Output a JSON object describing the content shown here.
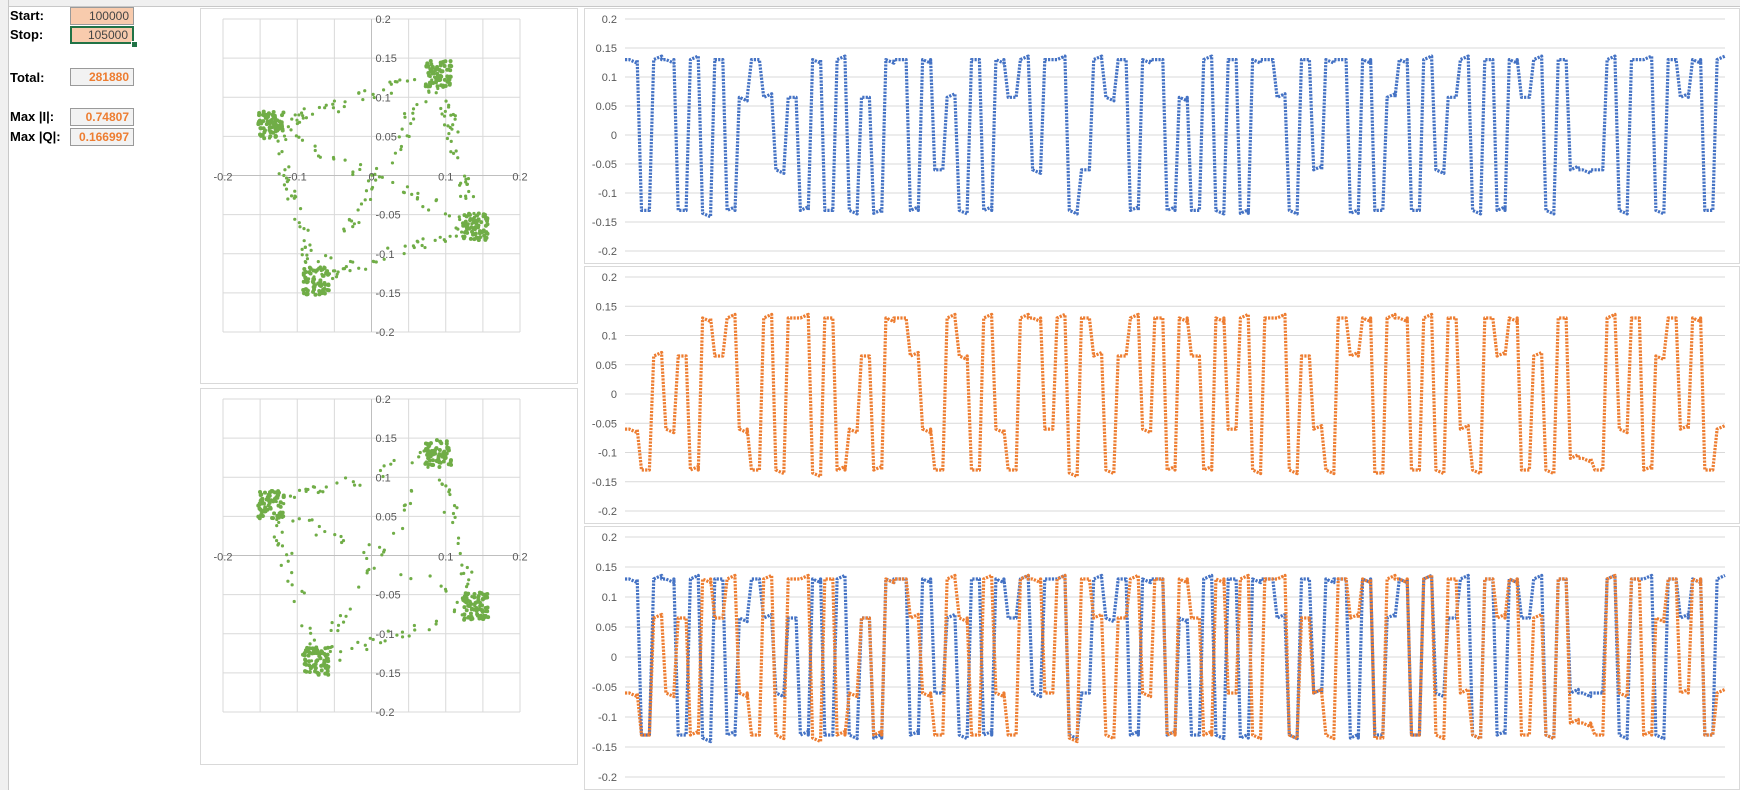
{
  "controls": {
    "start": {
      "label": "Start:",
      "value": "100000"
    },
    "stop": {
      "label": "Stop:",
      "value": "105000"
    },
    "total": {
      "label": "Total:",
      "value": "281880"
    },
    "max_i": {
      "label": "Max |I|:",
      "value": "0.74807"
    },
    "max_q": {
      "label": "Max |Q|:",
      "value": "0.166997"
    }
  },
  "colors": {
    "i_series": "#4472c4",
    "q_series": "#ed7d31",
    "constellation": "#70ad47",
    "grid": "#d9d9d9"
  },
  "chart_data": [
    {
      "type": "scatter",
      "name": "constellation-top",
      "xlim": [
        -0.2,
        0.2
      ],
      "ylim": [
        -0.2,
        0.2
      ],
      "xticks": [
        "-0.2",
        "-0.15",
        "-0.1",
        "-0.05",
        "0",
        "0.05",
        "0.1",
        "0.15",
        "0.2"
      ],
      "yticks": [
        "0.2",
        "0.15",
        "0.1",
        "0.05",
        "0",
        "-0.05",
        "-0.1",
        "-0.15",
        "-0.2"
      ],
      "x_tick_labels": [
        "-0.2",
        "-0.1",
        "0",
        "0.1",
        "0.2"
      ],
      "y_tick_labels": [
        "0.2",
        "0.15",
        "0.1",
        "0.05",
        "-0.05",
        "-0.1",
        "-0.15",
        "-0.2"
      ],
      "clusters": [
        [
          0.09,
          0.13
        ],
        [
          -0.135,
          0.065
        ],
        [
          0.14,
          -0.065
        ],
        [
          -0.075,
          -0.135
        ]
      ],
      "grid": true
    },
    {
      "type": "scatter",
      "name": "constellation-bottom",
      "xlim": [
        -0.2,
        0.2
      ],
      "ylim": [
        -0.2,
        0.2
      ],
      "x_tick_labels": [
        "-0.2",
        "0.1",
        "0.2"
      ],
      "y_tick_labels": [
        "0.2",
        "0.15",
        "0.1",
        "0.05",
        "-0.05",
        "-0.1",
        "-0.15",
        "-0.2"
      ],
      "clusters": [
        [
          0.09,
          0.13
        ],
        [
          -0.135,
          0.065
        ],
        [
          0.14,
          -0.065
        ],
        [
          -0.075,
          -0.135
        ]
      ],
      "grid": true
    },
    {
      "type": "line",
      "name": "i-waveform",
      "ylim": [
        -0.2,
        0.2
      ],
      "yticks": [
        "0.2",
        "0.15",
        "0.1",
        "0.05",
        "0",
        "-0.05",
        "-0.1",
        "-0.15",
        "-0.2"
      ],
      "levels": [
        -0.135,
        -0.06,
        0.065,
        0.13
      ],
      "series": [
        {
          "values": [
            0.13,
            -0.13,
            0.13,
            0.13,
            -0.13,
            0.13,
            -0.135,
            0.13,
            -0.13,
            0.065,
            0.13,
            0.065,
            -0.06,
            0.065,
            -0.13,
            0.13,
            -0.13,
            0.13,
            -0.13,
            0.065,
            -0.135,
            0.13,
            0.13,
            -0.13,
            0.13,
            -0.06,
            0.065,
            -0.13,
            0.13,
            -0.13,
            0.13,
            0.065,
            0.13,
            -0.06,
            0.13,
            0.13,
            -0.13,
            -0.06,
            0.13,
            0.065,
            0.13,
            -0.13,
            0.13,
            0.13,
            -0.13,
            0.065,
            -0.13,
            0.13,
            -0.13,
            0.13,
            -0.135,
            0.13,
            0.13,
            0.065,
            -0.13,
            0.13,
            -0.06,
            0.13,
            0.13,
            -0.135,
            0.13,
            -0.13,
            0.065,
            0.13,
            -0.13,
            0.13,
            -0.06,
            0.065,
            0.13,
            -0.13,
            0.13,
            -0.13,
            0.13,
            0.065,
            0.13,
            -0.13,
            0.13,
            -0.06,
            -0.06,
            -0.06,
            0.13,
            -0.13,
            0.13,
            0.13,
            -0.13,
            0.13,
            0.065,
            0.13,
            -0.13,
            0.13
          ]
        }
      ]
    },
    {
      "type": "line",
      "name": "q-waveform",
      "ylim": [
        -0.2,
        0.2
      ],
      "yticks": [
        "0.2",
        "0.15",
        "0.1",
        "0.05",
        "0",
        "-0.05",
        "-0.1",
        "-0.15",
        "-0.2"
      ],
      "levels": [
        -0.135,
        -0.06,
        0.065,
        0.13
      ],
      "series": [
        {
          "values": [
            -0.06,
            -0.13,
            0.065,
            -0.06,
            0.065,
            -0.13,
            0.13,
            0.065,
            0.13,
            -0.06,
            -0.13,
            0.13,
            -0.13,
            0.13,
            0.13,
            -0.135,
            0.13,
            -0.13,
            -0.06,
            0.065,
            -0.13,
            0.13,
            0.13,
            0.065,
            -0.06,
            -0.13,
            0.13,
            0.065,
            -0.13,
            0.13,
            -0.06,
            -0.13,
            0.13,
            0.13,
            -0.06,
            0.13,
            -0.135,
            0.13,
            0.065,
            -0.13,
            0.065,
            0.13,
            -0.06,
            0.13,
            -0.13,
            0.13,
            0.065,
            -0.13,
            0.13,
            -0.06,
            0.13,
            -0.13,
            0.13,
            0.13,
            -0.13,
            0.065,
            -0.06,
            -0.13,
            0.13,
            0.065,
            0.13,
            -0.135,
            0.13,
            0.13,
            -0.13,
            0.13,
            -0.13,
            0.13,
            -0.06,
            -0.13,
            0.13,
            0.065,
            0.13,
            -0.13,
            0.065,
            -0.13,
            0.13,
            -0.11,
            -0.11,
            -0.13,
            0.13,
            -0.06,
            0.13,
            -0.13,
            0.065,
            0.13,
            -0.06,
            0.13,
            -0.13,
            -0.06
          ]
        }
      ]
    },
    {
      "type": "line",
      "name": "iq-overlay",
      "ylim": [
        -0.2,
        0.2
      ],
      "yticks": [
        "0.2",
        "0.15",
        "0.1",
        "0.05",
        "0",
        "-0.05",
        "-0.1",
        "-0.15",
        "-0.2"
      ],
      "overlay_of": [
        "i-waveform",
        "q-waveform"
      ]
    }
  ]
}
